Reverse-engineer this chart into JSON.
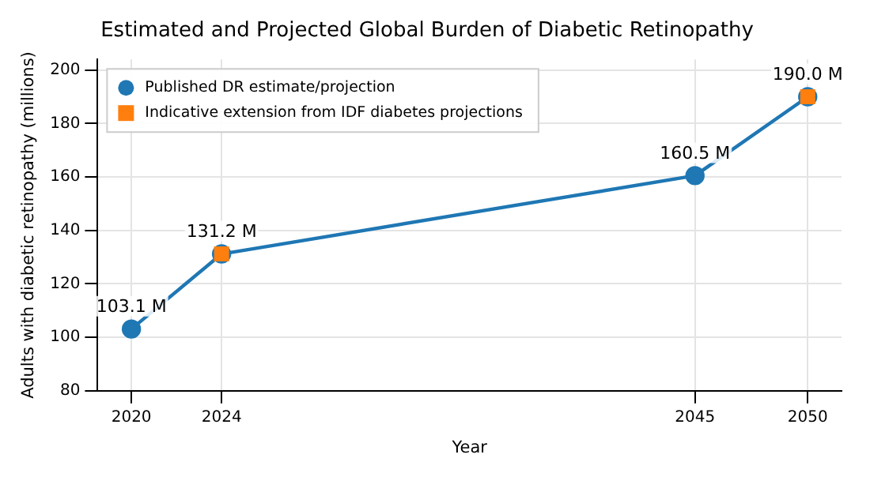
{
  "chart_data": {
    "type": "line",
    "title": "Estimated and Projected Global Burden of Diabetic Retinopathy",
    "xlabel": "Year",
    "ylabel": "Adults with diabetic retinopathy (millions)",
    "x": [
      2020,
      2024,
      2045,
      2050
    ],
    "series": [
      {
        "name": "Published DR estimate/projection",
        "color": "#1f77b4",
        "marker": "circle",
        "line_style": "solid",
        "values": [
          103.1,
          131.2,
          160.5,
          190.0
        ],
        "value_labels": [
          "103.1 M",
          "131.2 M",
          "160.5 M",
          "190.0 M"
        ]
      },
      {
        "name": "Indicative extension from IDF diabetes projections",
        "type": "scatter",
        "color": "#ff7f0e",
        "marker": "square",
        "values": [
          null,
          131.2,
          null,
          190.0
        ]
      }
    ],
    "xlim": [
      2018.5,
      2051.5
    ],
    "xticks": [
      2020,
      2024,
      2045,
      2050
    ],
    "ylim": [
      80,
      204
    ],
    "yticks": [
      80,
      100,
      120,
      140,
      160,
      180,
      200
    ],
    "grid": true,
    "legend": "top left"
  }
}
